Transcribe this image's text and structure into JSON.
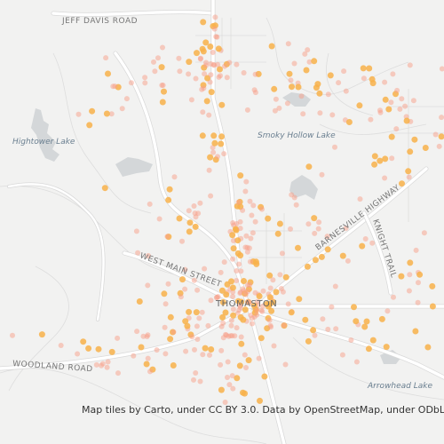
{
  "labels": {
    "road_north": "JEFF DAVIS ROAD",
    "lake_west": "Hightower Lake",
    "lake_north": "Smoky Hollow Lake",
    "road_east": "BARNESVILLE HIGHWAY",
    "road_knight": "KNIGHT TRAIL",
    "road_main": "WEST MAIN STREET",
    "town": "THOMASTON",
    "road_south": "WOODLAND ROAD",
    "lake_east": "Arrowhead Lake"
  },
  "attribution": "Map tiles by Carto, under CC BY 3.0. Data by OpenStreetMap, under ODbL."
}
